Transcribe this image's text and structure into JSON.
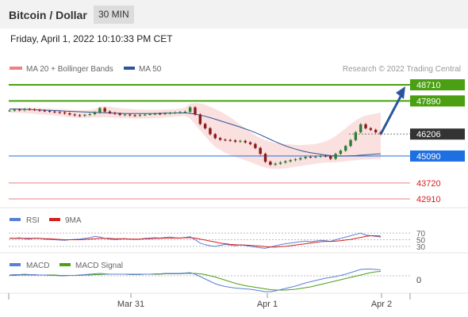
{
  "header": {
    "title": "Bitcoin / Dollar",
    "timeframe": "30 MIN"
  },
  "datetime": "Friday, April 1, 2022 10:10:33 PM CET",
  "legend": {
    "bollinger": "MA 20 + Bollinger Bands",
    "ma50": "MA 50",
    "credit": "Research © 2022 Trading Central"
  },
  "colors": {
    "resistance": "#4aa012",
    "support": "#1e6fe0",
    "current": "#333333",
    "minor": "#f08080",
    "ma50": "#2b579a",
    "bollinger": "#f7c6c6",
    "arrow": "#2b579a",
    "rsi": "#5b7fd6",
    "rsi_ma": "#d62020",
    "macd": "#5b7fd6",
    "macd_signal": "#4aa012"
  },
  "chart_data": {
    "type": "line",
    "price_levels": [
      {
        "value": 48710,
        "label": "48710",
        "kind": "resistance"
      },
      {
        "value": 47890,
        "label": "47890",
        "kind": "resistance"
      },
      {
        "value": 46206,
        "label": "46206",
        "kind": "current"
      },
      {
        "value": 45090,
        "label": "45090",
        "kind": "support"
      },
      {
        "value": 43720,
        "label": "43720",
        "kind": "minor"
      },
      {
        "value": 42910,
        "label": "42910",
        "kind": "minor"
      }
    ],
    "x_ticks": [
      "Mar 31",
      "Apr 1",
      "Apr 2"
    ],
    "price": [
      47400,
      47450,
      47420,
      47480,
      47460,
      47430,
      47400,
      47380,
      47350,
      47320,
      47300,
      47260,
      47200,
      47160,
      47140,
      47180,
      47220,
      47300,
      47520,
      47350,
      47280,
      47240,
      47180,
      47200,
      47160,
      47140,
      47180,
      47200,
      47220,
      47240,
      47230,
      47260,
      47280,
      47300,
      47320,
      47340,
      47560,
      47200,
      46720,
      46500,
      46200,
      46000,
      45920,
      45900,
      45880,
      45820,
      45860,
      45780,
      45700,
      45500,
      45200,
      44800,
      44650,
      44700,
      44760,
      44820,
      44880,
      44920,
      44980,
      45050,
      45040,
      45060,
      45100,
      45080,
      44950,
      45200,
      45360,
      45600,
      45900,
      46300,
      46700,
      46500,
      46420,
      46300,
      46206
    ],
    "ma50": [
      47480,
      47480,
      47470,
      47460,
      47450,
      47440,
      47430,
      47420,
      47410,
      47400,
      47390,
      47370,
      47360,
      47350,
      47340,
      47330,
      47320,
      47310,
      47300,
      47290,
      47280,
      47270,
      47260,
      47250,
      47250,
      47250,
      47250,
      47250,
      47250,
      47250,
      47260,
      47270,
      47270,
      47280,
      47280,
      47280,
      47260,
      47220,
      47170,
      47110,
      47040,
      46960,
      46880,
      46800,
      46720,
      46640,
      46560,
      46470,
      46380,
      46280,
      46170,
      46050,
      45930,
      45820,
      45710,
      45610,
      45520,
      45440,
      45370,
      45310,
      45260,
      45220,
      45180,
      45140,
      45110,
      45100,
      45090,
      45090,
      45100,
      45110,
      45130,
      45150,
      45170,
      45190,
      45200
    ],
    "bollinger_upper": [
      47500,
      47520,
      47530,
      47540,
      47540,
      47530,
      47520,
      47510,
      47500,
      47490,
      47480,
      47470,
      47450,
      47430,
      47410,
      47420,
      47440,
      47480,
      47600,
      47620,
      47600,
      47560,
      47520,
      47500,
      47480,
      47460,
      47450,
      47440,
      47440,
      47440,
      47440,
      47450,
      47460,
      47470,
      47500,
      47560,
      47750,
      47780,
      47760,
      47700,
      47600,
      47480,
      47360,
      47220,
      47060,
      46880,
      46680,
      46500,
      46320,
      46150,
      46000,
      45900,
      45820,
      45760,
      45720,
      45700,
      45680,
      45660,
      45650,
      45660,
      45680,
      45700,
      45760,
      45840,
      45950,
      46100,
      46300,
      46500,
      46700,
      46900,
      47050,
      47150,
      47200,
      47250,
      47300
    ],
    "bollinger_lower": [
      47300,
      47290,
      47280,
      47270,
      47250,
      47230,
      47210,
      47190,
      47170,
      47150,
      47120,
      47090,
      47060,
      47040,
      47030,
      47030,
      47040,
      47050,
      47060,
      47060,
      47050,
      47040,
      47030,
      47020,
      47010,
      47000,
      47000,
      47000,
      47010,
      47020,
      47030,
      47050,
      47070,
      47090,
      47110,
      47130,
      47000,
      46700,
      46400,
      46100,
      45800,
      45560,
      45400,
      45260,
      45140,
      45040,
      44960,
      44880,
      44780,
      44680,
      44580,
      44500,
      44450,
      44430,
      44440,
      44470,
      44500,
      44540,
      44580,
      44620,
      44660,
      44700,
      44730,
      44750,
      44760,
      44770,
      44790,
      44820,
      44850,
      44880,
      44900,
      44910,
      44920,
      44930,
      44940
    ],
    "rsi": {
      "name": "RSI",
      "ma_name": "9MA",
      "levels": [
        {
          "value": 70,
          "label": "70"
        },
        {
          "value": 50,
          "label": "50"
        },
        {
          "value": 30,
          "label": "30"
        }
      ],
      "values": [
        55,
        54,
        56,
        53,
        52,
        55,
        54,
        52,
        51,
        50,
        49,
        48,
        50,
        51,
        52,
        54,
        56,
        60,
        58,
        54,
        52,
        50,
        52,
        53,
        52,
        51,
        52,
        54,
        55,
        56,
        55,
        57,
        58,
        56,
        55,
        57,
        59,
        50,
        40,
        35,
        32,
        30,
        33,
        36,
        34,
        32,
        35,
        33,
        30,
        28,
        26,
        24,
        28,
        32,
        35,
        38,
        40,
        42,
        44,
        46,
        44,
        46,
        48,
        47,
        45,
        50,
        54,
        58,
        62,
        66,
        70,
        64,
        62,
        60,
        58
      ],
      "ma_values": [
        54,
        54,
        54,
        54,
        54,
        54,
        54,
        53,
        53,
        52,
        51,
        50,
        50,
        50,
        50,
        51,
        52,
        53,
        54,
        54,
        54,
        53,
        53,
        53,
        52,
        52,
        52,
        53,
        53,
        54,
        54,
        55,
        55,
        55,
        55,
        56,
        56,
        55,
        52,
        49,
        46,
        43,
        40,
        38,
        36,
        35,
        34,
        34,
        33,
        32,
        31,
        29,
        28,
        28,
        29,
        30,
        32,
        34,
        36,
        38,
        40,
        42,
        44,
        45,
        45,
        46,
        47,
        49,
        51,
        54,
        57,
        60,
        62,
        62,
        61
      ]
    },
    "macd": {
      "name": "MACD",
      "signal_name": "MACD Signal",
      "zero_label": "0",
      "values": [
        2,
        3,
        3,
        4,
        3,
        3,
        2,
        2,
        1,
        1,
        0,
        0,
        1,
        1,
        2,
        3,
        4,
        5,
        6,
        5,
        4,
        4,
        4,
        4,
        3,
        3,
        3,
        4,
        4,
        5,
        5,
        6,
        6,
        6,
        6,
        7,
        8,
        4,
        -2,
        -8,
        -14,
        -20,
        -24,
        -27,
        -29,
        -31,
        -32,
        -33,
        -34,
        -36,
        -38,
        -40,
        -40,
        -38,
        -35,
        -32,
        -29,
        -26,
        -22,
        -18,
        -15,
        -12,
        -9,
        -6,
        -4,
        -2,
        1,
        4,
        8,
        12,
        16,
        17,
        17,
        16,
        15
      ],
      "signal_values": [
        1,
        1,
        2,
        2,
        2,
        2,
        2,
        2,
        2,
        2,
        1,
        1,
        1,
        1,
        1,
        2,
        2,
        3,
        3,
        4,
        4,
        4,
        4,
        4,
        4,
        4,
        4,
        4,
        4,
        4,
        4,
        5,
        5,
        5,
        5,
        6,
        6,
        6,
        5,
        3,
        0,
        -3,
        -7,
        -11,
        -15,
        -19,
        -22,
        -25,
        -27,
        -29,
        -31,
        -33,
        -35,
        -36,
        -36,
        -36,
        -35,
        -34,
        -32,
        -30,
        -28,
        -25,
        -22,
        -19,
        -16,
        -13,
        -10,
        -7,
        -4,
        -1,
        2,
        5,
        8,
        10,
        11
      ]
    }
  }
}
